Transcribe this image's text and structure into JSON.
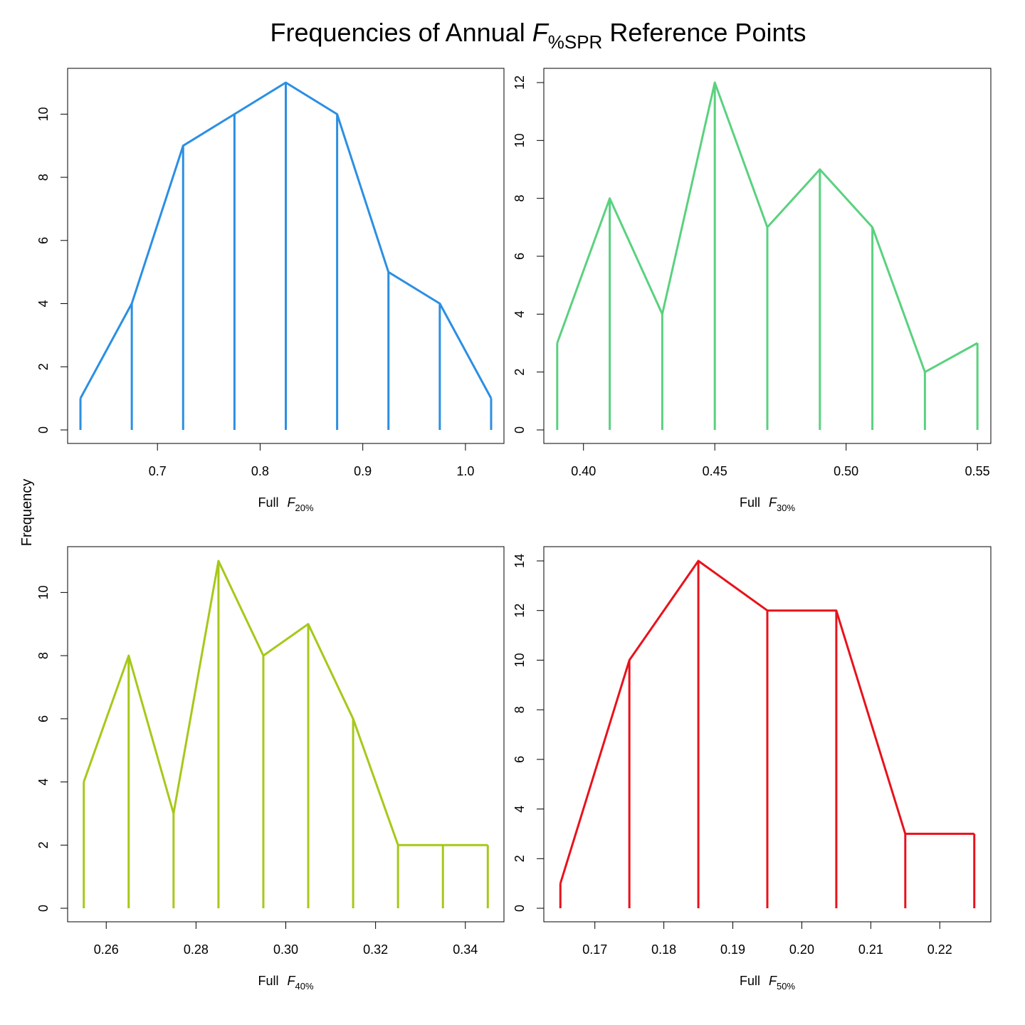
{
  "figure": {
    "title_main_prefix": "Frequencies of Annual ",
    "title_symbol": "F",
    "title_subscript": "%SPR",
    "title_suffix": " Reference Points",
    "ylabel": "Frequency"
  },
  "chart_data": [
    {
      "type": "line",
      "color": "#2b8fe3",
      "xlabel_prefix": "Full",
      "xlabel_symbol": "F",
      "xlabel_subscript": "20%",
      "x": [
        0.625,
        0.675,
        0.725,
        0.775,
        0.825,
        0.875,
        0.925,
        0.975,
        1.025
      ],
      "y": [
        1,
        4,
        9,
        10,
        11,
        10,
        5,
        4,
        1
      ],
      "xlim": [
        0.6125,
        1.0375
      ],
      "ylim": [
        0,
        11
      ],
      "xticks": [
        0.7,
        0.8,
        0.9,
        1.0
      ],
      "xtick_labels": [
        "0.7",
        "0.8",
        "0.9",
        "1.0"
      ],
      "yticks": [
        0,
        2,
        4,
        6,
        8,
        10
      ],
      "ytick_labels": [
        "0",
        "2",
        "4",
        "6",
        "8",
        "10"
      ],
      "grid": false
    },
    {
      "type": "line",
      "color": "#5ad17f",
      "xlabel_prefix": "Full",
      "xlabel_symbol": "F",
      "xlabel_subscript": "30%",
      "x": [
        0.39,
        0.41,
        0.43,
        0.45,
        0.47,
        0.49,
        0.51,
        0.53,
        0.55
      ],
      "y": [
        3,
        8,
        4,
        12,
        7,
        9,
        7,
        2,
        3
      ],
      "xlim": [
        0.3849,
        0.5551
      ],
      "ylim": [
        0,
        12
      ],
      "xticks": [
        0.4,
        0.45,
        0.5,
        0.55
      ],
      "xtick_labels": [
        "0.40",
        "0.45",
        "0.50",
        "0.55"
      ],
      "yticks": [
        0,
        2,
        4,
        6,
        8,
        10,
        12
      ],
      "ytick_labels": [
        "0",
        "2",
        "4",
        "6",
        "8",
        "10",
        "12"
      ],
      "grid": false
    },
    {
      "type": "line",
      "color": "#a6c819",
      "xlabel_prefix": "Full",
      "xlabel_symbol": "F",
      "xlabel_subscript": "40%",
      "x": [
        0.255,
        0.265,
        0.275,
        0.285,
        0.295,
        0.305,
        0.315,
        0.325,
        0.335,
        0.345
      ],
      "y": [
        4,
        8,
        3,
        11,
        8,
        9,
        6,
        2,
        2,
        2
      ],
      "xlim": [
        0.2514,
        0.3486
      ],
      "ylim": [
        0,
        11
      ],
      "xticks": [
        0.26,
        0.28,
        0.3,
        0.32,
        0.34
      ],
      "xtick_labels": [
        "0.26",
        "0.28",
        "0.30",
        "0.32",
        "0.34"
      ],
      "yticks": [
        0,
        2,
        4,
        6,
        8,
        10
      ],
      "ytick_labels": [
        "0",
        "2",
        "4",
        "6",
        "8",
        "10"
      ],
      "grid": false
    },
    {
      "type": "line",
      "color": "#e8121b",
      "xlabel_prefix": "Full",
      "xlabel_symbol": "F",
      "xlabel_subscript": "50%",
      "x": [
        0.165,
        0.175,
        0.185,
        0.195,
        0.205,
        0.215,
        0.225
      ],
      "y": [
        1,
        10,
        14,
        12,
        12,
        3,
        3
      ],
      "xlim": [
        0.1626,
        0.2274
      ],
      "ylim": [
        0,
        14
      ],
      "xticks": [
        0.17,
        0.18,
        0.19,
        0.2,
        0.21,
        0.22
      ],
      "xtick_labels": [
        "0.17",
        "0.18",
        "0.19",
        "0.20",
        "0.21",
        "0.22"
      ],
      "yticks": [
        0,
        2,
        4,
        6,
        8,
        10,
        12,
        14
      ],
      "ytick_labels": [
        "0",
        "2",
        "4",
        "6",
        "8",
        "10",
        "12",
        "14"
      ],
      "grid": false
    }
  ]
}
